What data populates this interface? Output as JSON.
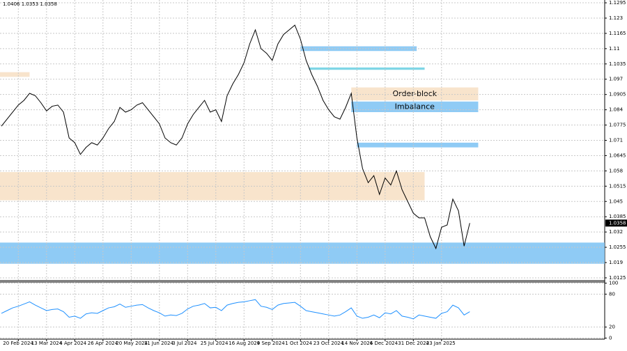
{
  "chart_data": [
    {
      "type": "line",
      "ohlc_text": "1.0406 1.0353 1.0358",
      "current_price": 1.0358,
      "color": "#000000",
      "grid": true,
      "categories": [
        null,
        null,
        null,
        "20 Feb 2024",
        null,
        null,
        null,
        null,
        "13 Mar 2024",
        null,
        null,
        null,
        null,
        "4 Apr 2024",
        null,
        null,
        null,
        null,
        "26 Apr 2024",
        null,
        null,
        null,
        null,
        "20 May 2024",
        null,
        null,
        null,
        null,
        "11 Jun 2024",
        null,
        null,
        null,
        null,
        "3 Jul 2024",
        null,
        null,
        null,
        null,
        "25 Jul 2024",
        null,
        null,
        null,
        null,
        "16 Aug 2024",
        null,
        null,
        null,
        null,
        "9 Sep 2024",
        null,
        null,
        null,
        null,
        "1 Oct 2024",
        null,
        null,
        null,
        null,
        "23 Oct 2024",
        null,
        null,
        null,
        null,
        "14 Nov 2024",
        null,
        null,
        null,
        null,
        "6 Dec 2024",
        null,
        null,
        null,
        null,
        "31 Dec 2024",
        null,
        null,
        null,
        null,
        "23 Jan 2025",
        null,
        null,
        null,
        null,
        null
      ],
      "values": [
        1.077,
        1.08,
        1.083,
        1.086,
        1.088,
        1.091,
        1.09,
        1.087,
        1.0835,
        1.0855,
        1.086,
        1.083,
        1.072,
        1.07,
        1.065,
        1.068,
        1.07,
        1.069,
        1.072,
        1.076,
        1.079,
        1.085,
        1.083,
        1.084,
        1.086,
        1.087,
        1.084,
        1.081,
        1.078,
        1.072,
        1.07,
        1.069,
        1.072,
        1.078,
        1.082,
        1.085,
        1.088,
        1.083,
        1.084,
        1.079,
        1.09,
        1.095,
        1.099,
        1.104,
        1.112,
        1.118,
        1.11,
        1.108,
        1.105,
        1.112,
        1.116,
        1.118,
        1.12,
        1.114,
        1.105,
        1.099,
        1.094,
        1.088,
        1.084,
        1.081,
        1.08,
        1.085,
        1.091,
        1.072,
        1.059,
        1.053,
        1.056,
        1.048,
        1.055,
        1.052,
        1.058,
        1.05,
        1.045,
        1.04,
        1.038,
        1.038,
        1.03,
        1.025,
        1.034,
        1.035,
        1.046,
        1.041,
        1.026,
        1.0358
      ],
      "ylim": [
        1.0113,
        1.1307
      ],
      "yticks": [
        1.1295,
        1.123,
        1.1165,
        1.11,
        1.1035,
        1.097,
        1.0905,
        1.084,
        1.0775,
        1.071,
        1.0645,
        1.058,
        1.0515,
        1.045,
        1.0385,
        1.032,
        1.0255,
        1.019,
        1.0125
      ],
      "zones": [
        {
          "range": [
            1.0185,
            1.0275
          ],
          "x": [
            -0.3,
            106.9
          ],
          "color": "#8fcbf5"
        },
        {
          "range": [
            1.0455,
            1.0575
          ],
          "x": [
            -0.3,
            75
          ],
          "color": "#f8e4cc"
        },
        {
          "range": [
            1.098,
            1.1
          ],
          "x": [
            -0.3,
            5
          ],
          "color": "#f8e4cc"
        },
        {
          "range": [
            1.088,
            1.0935
          ],
          "x": [
            62,
            84.5
          ],
          "color": "#f8e4cc",
          "label": "Order-block"
        },
        {
          "range": [
            1.083,
            1.0875
          ],
          "x": [
            62,
            84.5
          ],
          "color": "#8fcbf5",
          "label": "Imbalance"
        },
        {
          "range": [
            1.068,
            1.07
          ],
          "x": [
            63,
            84.5
          ],
          "color": "#8fcbf5"
        },
        {
          "range": [
            1.109,
            1.111
          ],
          "x": [
            53,
            73.6
          ],
          "color": "#8fcbf5"
        },
        {
          "range": [
            1.101,
            1.102
          ],
          "x": [
            54.5,
            75
          ],
          "color": "#7fd6e6"
        }
      ]
    },
    {
      "type": "line",
      "color": "#1e90ff",
      "values": [
        45,
        50,
        55,
        58,
        62,
        66,
        60,
        55,
        50,
        52,
        53,
        48,
        38,
        40,
        36,
        44,
        46,
        45,
        50,
        55,
        57,
        62,
        56,
        58,
        60,
        61,
        55,
        50,
        46,
        40,
        42,
        41,
        45,
        53,
        58,
        60,
        63,
        55,
        56,
        50,
        60,
        63,
        65,
        66,
        68,
        70,
        58,
        56,
        52,
        60,
        63,
        64,
        65,
        58,
        50,
        48,
        46,
        44,
        42,
        40,
        42,
        48,
        55,
        40,
        36,
        38,
        42,
        37,
        46,
        44,
        50,
        40,
        38,
        35,
        42,
        40,
        38,
        36,
        45,
        48,
        60,
        55,
        42,
        48
      ],
      "ylim": [
        -2,
        102
      ],
      "yticks": [
        100,
        80,
        20,
        0
      ]
    }
  ]
}
